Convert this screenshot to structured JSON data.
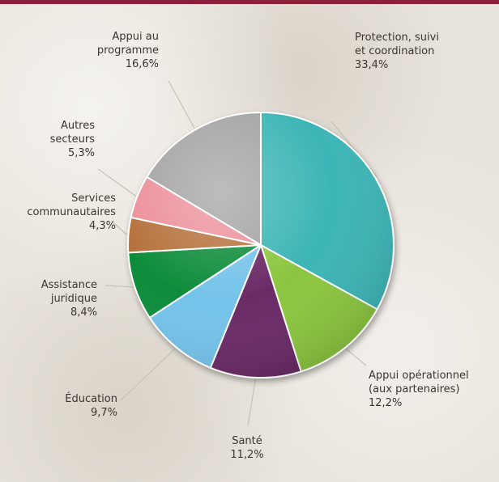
{
  "chart_data": {
    "type": "pie",
    "title": "",
    "slices": [
      {
        "label_lines": [
          "Protection, suivi",
          "et coordination"
        ],
        "value_text": "33,4%",
        "value": 33.4,
        "color": "#3db5b6"
      },
      {
        "label_lines": [
          "Appui opérationnel",
          "(aux partenaires)"
        ],
        "value_text": "12,2%",
        "value": 12.2,
        "color": "#8cc63f"
      },
      {
        "label_lines": [
          "Santé"
        ],
        "value_text": "11,2%",
        "value": 11.2,
        "color": "#6b2a66"
      },
      {
        "label_lines": [
          "Éducation"
        ],
        "value_text": "9,7%",
        "value": 9.7,
        "color": "#74c3ea"
      },
      {
        "label_lines": [
          "Assistance",
          "juridique"
        ],
        "value_text": "8,4%",
        "value": 8.4,
        "color": "#0f8c3a"
      },
      {
        "label_lines": [
          "Services",
          "communautaires"
        ],
        "value_text": "4,3%",
        "value": 4.3,
        "color": "#b5703a"
      },
      {
        "label_lines": [
          "Autres",
          "secteurs"
        ],
        "value_text": "5,3%",
        "value": 5.3,
        "color": "#ec8f9a"
      },
      {
        "label_lines": [
          "Appui au",
          "programme"
        ],
        "value_text": "16,6%",
        "value": 16.6,
        "color": "#a3a3a3"
      }
    ]
  }
}
